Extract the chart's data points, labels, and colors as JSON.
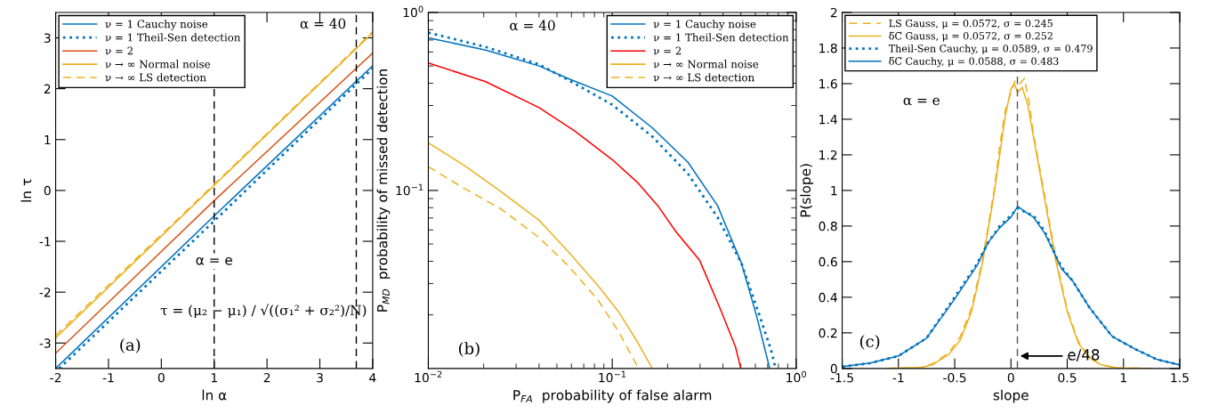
{
  "chart_data": [
    {
      "type": "line",
      "xlabel": "ln α",
      "ylabel": "ln τ",
      "xlim": [
        -2,
        4
      ],
      "ylim": [
        -3.5,
        3.5
      ],
      "xticks": [
        -2,
        -1,
        0,
        1,
        2,
        3,
        4
      ],
      "yticks": [
        -3,
        -2,
        -1,
        0,
        1,
        2,
        3
      ],
      "legend": "top left",
      "grid": false,
      "series": [
        {
          "name": "ν = 1 Cauchy noise",
          "color": "#0072bd",
          "line_style": "solid",
          "x": [
            -2,
            1,
            4
          ],
          "values": [
            -3.5,
            -0.5,
            2.45
          ]
        },
        {
          "name": "ν = 1 Theil-Sen detection",
          "color": "#0072bd",
          "line_style": "dotted",
          "x": [
            -1.93,
            1,
            4
          ],
          "values": [
            -3.5,
            -0.6,
            2.4
          ]
        },
        {
          "name": "ν = 2",
          "color": "#d95319",
          "line_style": "solid",
          "x": [
            -2,
            1,
            4
          ],
          "values": [
            -3.2,
            -0.2,
            2.7
          ]
        },
        {
          "name": "ν → ∞ Normal noise",
          "color": "#edb120",
          "line_style": "solid",
          "x": [
            -2,
            1,
            4
          ],
          "values": [
            -2.9,
            0.1,
            3.1
          ]
        },
        {
          "name": "ν → ∞ LS detection",
          "color": "#edb120",
          "line_style": "dashed",
          "x": [
            -2,
            1,
            4
          ],
          "values": [
            -2.85,
            0.12,
            3.12
          ]
        }
      ],
      "ref_lines": [
        {
          "axis": "x",
          "value": 1,
          "label": "α = e",
          "line_style": "dashed",
          "color": "#000000"
        },
        {
          "axis": "x",
          "value": 3.69,
          "line_style": "dashed",
          "color": "#000000"
        }
      ],
      "annotations": [
        "τ = (μ₂ − μ₁) / √((σ₁² + σ₂²)/N)",
        "(a)",
        "α = 40"
      ]
    },
    {
      "type": "line",
      "xlabel": "P$_{FA}$  probability of false alarm",
      "ylabel": "P$_{MD}$  probability of missed detection",
      "log": "xy",
      "xlim": [
        0.01,
        1
      ],
      "ylim": [
        0.01,
        1
      ],
      "xticks": [
        {
          "value": 0.01,
          "label": "10$^{−2}$"
        },
        {
          "value": 0.1,
          "label": "10$^{−1}$"
        },
        {
          "value": 1,
          "label": "10$^{0}$"
        }
      ],
      "yticks": [
        {
          "value": 0.1,
          "label": "10$^{−1}$"
        },
        {
          "value": 1,
          "label": "10$^{0}$"
        }
      ],
      "legend": "top right",
      "grid": false,
      "series": [
        {
          "name": "ν = 1 Cauchy noise",
          "color": "#0072bd",
          "line_style": "solid",
          "x": [
            0.01,
            0.0205,
            0.04,
            0.058,
            0.1,
            0.165,
            0.258,
            0.374,
            0.504,
            0.607,
            0.69,
            0.718
          ],
          "values": [
            0.72,
            0.615,
            0.5,
            0.424,
            0.339,
            0.225,
            0.144,
            0.082,
            0.039,
            0.02,
            0.0118,
            0.01
          ]
        },
        {
          "name": "ν = 1 Theil-Sen detection",
          "color": "#0072bd",
          "line_style": "dotted",
          "x": [
            0.01,
            0.0205,
            0.04,
            0.058,
            0.1,
            0.165,
            0.258,
            0.374,
            0.504,
            0.63,
            0.73,
            0.773
          ],
          "values": [
            0.77,
            0.64,
            0.51,
            0.416,
            0.303,
            0.201,
            0.124,
            0.0706,
            0.039,
            0.02,
            0.0127,
            0.01
          ]
        },
        {
          "name": "ν = 2",
          "color": "#ff0000",
          "line_style": "solid",
          "x": [
            0.01,
            0.0205,
            0.04,
            0.0625,
            0.1,
            0.137,
            0.177,
            0.222,
            0.299,
            0.388,
            0.468,
            0.5
          ],
          "values": [
            0.52,
            0.408,
            0.292,
            0.216,
            0.149,
            0.111,
            0.082,
            0.0586,
            0.0404,
            0.0214,
            0.0132,
            0.01
          ]
        },
        {
          "name": "ν → ∞ Normal noise",
          "color": "#edb120",
          "line_style": "solid",
          "x": [
            0.01,
            0.0157,
            0.0247,
            0.04,
            0.058,
            0.0843,
            0.109,
            0.137,
            0.165
          ],
          "values": [
            0.185,
            0.138,
            0.0989,
            0.068,
            0.045,
            0.0289,
            0.0206,
            0.0141,
            0.01
          ]
        },
        {
          "name": "ν → ∞ LS detection",
          "color": "#edb120",
          "line_style": "dashed",
          "x": [
            0.01,
            0.0157,
            0.0247,
            0.04,
            0.058,
            0.0843,
            0.109,
            0.139
          ],
          "values": [
            0.136,
            0.1026,
            0.079,
            0.0544,
            0.0375,
            0.024,
            0.0159,
            0.01
          ]
        }
      ],
      "annotations": [
        "α = 40",
        "(b)"
      ]
    },
    {
      "type": "line",
      "xlabel": "slope",
      "ylabel": "P(slope)",
      "xlim": [
        -1.5,
        1.5
      ],
      "ylim": [
        0,
        2
      ],
      "xticks": [
        -1.5,
        -1,
        -0.5,
        0,
        0.5,
        1,
        1.5
      ],
      "yticks": [
        0,
        0.2,
        0.4,
        0.6,
        0.8,
        1,
        1.2,
        1.4,
        1.6,
        1.8,
        2
      ],
      "legend": "top left",
      "grid": false,
      "series": [
        {
          "name": "LS Gauss, μ = 0.0572, σ = 0.245",
          "color": "#edb120",
          "line_style": "dashed",
          "x": [
            -1.1,
            -0.8,
            -0.7,
            -0.55,
            -0.45,
            -0.35,
            -0.25,
            -0.15,
            -0.1,
            -0.05,
            0,
            0.04,
            0.08,
            0.12,
            0.16,
            0.2,
            0.3,
            0.4,
            0.5,
            0.6,
            0.7,
            0.8,
            0.95,
            1.25
          ],
          "values": [
            0,
            0.005,
            0.025,
            0.09,
            0.18,
            0.34,
            0.62,
            1.0,
            1.25,
            1.45,
            1.55,
            1.62,
            1.6,
            1.63,
            1.5,
            1.32,
            0.97,
            0.62,
            0.33,
            0.15,
            0.06,
            0.02,
            0.003,
            0
          ]
        },
        {
          "name": "δ̅C̅ Gauss, μ = 0.0572, σ = 0.252",
          "color": "#edb120",
          "line_style": "solid",
          "x": [
            -1.1,
            -0.8,
            -0.7,
            -0.55,
            -0.45,
            -0.35,
            -0.25,
            -0.15,
            -0.1,
            -0.05,
            0,
            0.03,
            0.06,
            0.1,
            0.15,
            0.2,
            0.3,
            0.4,
            0.5,
            0.6,
            0.7,
            0.8,
            0.95,
            1.25
          ],
          "values": [
            0,
            0.005,
            0.02,
            0.08,
            0.16,
            0.32,
            0.6,
            0.98,
            1.2,
            1.42,
            1.57,
            1.6,
            1.55,
            1.58,
            1.48,
            1.3,
            0.95,
            0.6,
            0.32,
            0.14,
            0.06,
            0.02,
            0.003,
            0
          ]
        },
        {
          "name": "Theil-Sen Cauchy, μ = 0.0589, σ = 0.479",
          "color": "#0072bd",
          "line_style": "dotted",
          "x": [
            -1.5,
            -1.25,
            -1,
            -0.75,
            -0.5,
            -0.3,
            -0.2,
            -0.1,
            0,
            0.06,
            0.15,
            0.2,
            0.3,
            0.4,
            0.45,
            0.55,
            0.7,
            0.9,
            1.1,
            1.3,
            1.5
          ],
          "values": [
            0.01,
            0.03,
            0.07,
            0.17,
            0.4,
            0.59,
            0.71,
            0.8,
            0.86,
            0.9,
            0.87,
            0.86,
            0.77,
            0.63,
            0.57,
            0.49,
            0.34,
            0.18,
            0.11,
            0.05,
            0.02
          ]
        },
        {
          "name": "δ̅C̅ Cauchy, μ = 0.0588, σ = 0.483",
          "color": "#0072bd",
          "line_style": "solid",
          "x": [
            -1.5,
            -1.25,
            -1,
            -0.75,
            -0.5,
            -0.3,
            -0.2,
            -0.1,
            0,
            0.06,
            0.15,
            0.2,
            0.3,
            0.4,
            0.45,
            0.55,
            0.7,
            0.9,
            1.1,
            1.3,
            1.5
          ],
          "values": [
            0.01,
            0.03,
            0.07,
            0.17,
            0.39,
            0.58,
            0.71,
            0.79,
            0.85,
            0.91,
            0.87,
            0.85,
            0.76,
            0.63,
            0.56,
            0.49,
            0.34,
            0.18,
            0.11,
            0.05,
            0.02
          ]
        }
      ],
      "ref_lines": [
        {
          "axis": "x",
          "value": 0.0572,
          "line_style": "dashed",
          "color": "#555555"
        }
      ],
      "annotations": [
        "α = e",
        "(c)",
        {
          "text": "e/48",
          "x": 0.06,
          "y": 0.07
        }
      ]
    }
  ]
}
